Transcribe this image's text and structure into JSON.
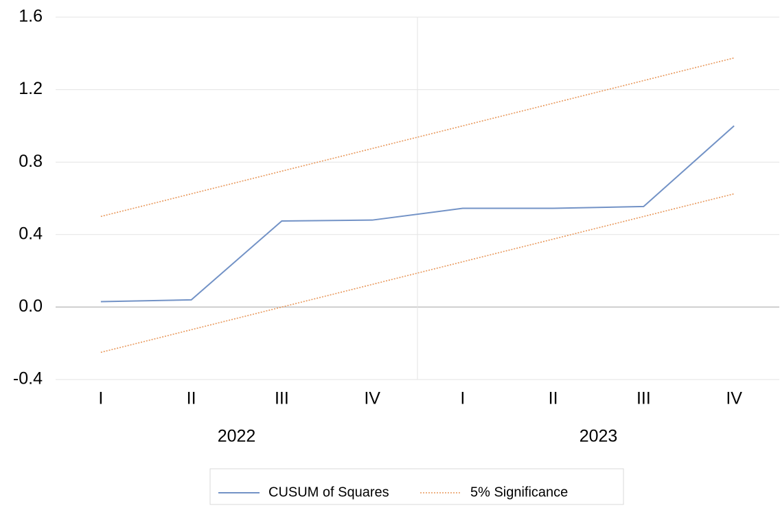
{
  "chart_data": {
    "type": "line",
    "categories": [
      "I",
      "II",
      "III",
      "IV",
      "I",
      "II",
      "III",
      "IV"
    ],
    "groups": [
      "2022",
      "2023"
    ],
    "series": [
      {
        "name": "CUSUM of Squares",
        "color": "#7292c6",
        "values": [
          0.03,
          0.04,
          0.475,
          0.48,
          0.545,
          0.545,
          0.555,
          1.0
        ]
      },
      {
        "name": "5% Significance",
        "color": "#e8975a",
        "dash": true,
        "values": [
          0.5,
          0.625,
          0.75,
          0.875,
          1.0,
          1.125,
          1.25,
          1.375
        ],
        "lower": [
          -0.25,
          -0.125,
          0,
          0.125,
          0.25,
          0.375,
          0.5,
          0.625
        ]
      }
    ],
    "ylim": [
      -0.4,
      1.6
    ],
    "yticks": [
      -0.4,
      {
        "value": 0,
        "label": "0.0"
      },
      0.4,
      0.8,
      1.2,
      1.6
    ],
    "grid": true,
    "legend": "bottom"
  }
}
